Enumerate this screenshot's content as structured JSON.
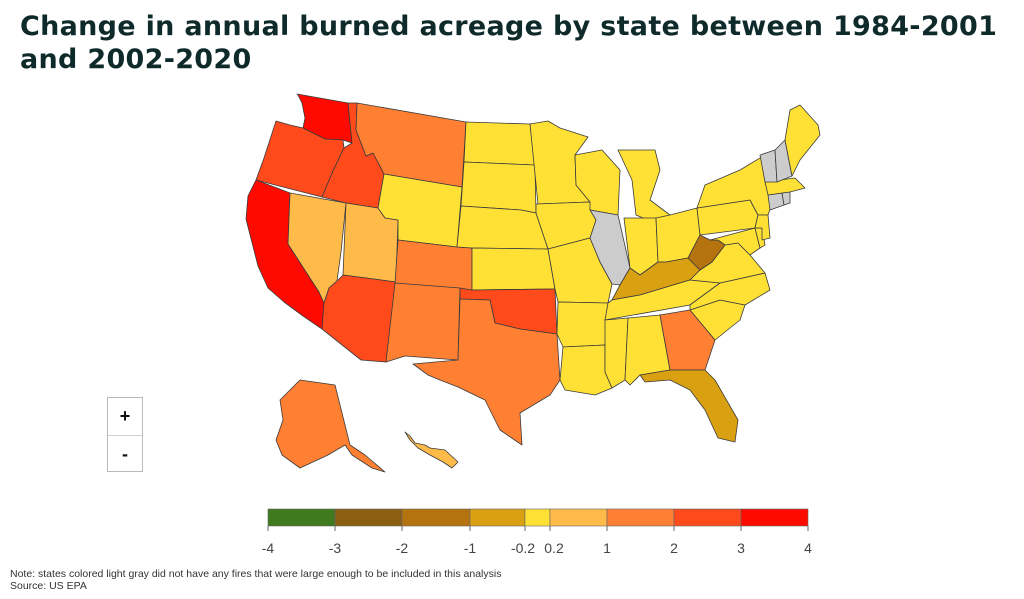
{
  "title": "Change in annual burned acreage by state between 1984-2001 and 2002-2020",
  "zoom": {
    "in_label": "+",
    "out_label": "-"
  },
  "legend": {
    "bins": [
      {
        "from": -4,
        "to": -3,
        "color": "#3f7a1e"
      },
      {
        "from": -3,
        "to": -2,
        "color": "#8a5f12"
      },
      {
        "from": -2,
        "to": -1,
        "color": "#b5730f"
      },
      {
        "from": -1,
        "to": -0.2,
        "color": "#d9a012"
      },
      {
        "from": -0.2,
        "to": 0.2,
        "color": "#ffe135"
      },
      {
        "from": 0.2,
        "to": 1,
        "color": "#ffbb4a"
      },
      {
        "from": 1,
        "to": 2,
        "color": "#ff8033"
      },
      {
        "from": 2,
        "to": 3,
        "color": "#ff4a1c"
      },
      {
        "from": 3,
        "to": 4,
        "color": "#ff0a00"
      }
    ],
    "ticks": [
      "-4",
      "-3",
      "-2",
      "-1",
      "-0.2",
      "0.2",
      "1",
      "2",
      "3",
      "4"
    ]
  },
  "states": {
    "WA": {
      "bin": 8
    },
    "OR": {
      "bin": 7
    },
    "CA": {
      "bin": 8
    },
    "ID": {
      "bin": 7
    },
    "NV": {
      "bin": 5
    },
    "UT": {
      "bin": 5
    },
    "AZ": {
      "bin": 7
    },
    "MT": {
      "bin": 6
    },
    "WY": {
      "bin": 4
    },
    "CO": {
      "bin": 6
    },
    "NM": {
      "bin": 6
    },
    "ND": {
      "bin": 4
    },
    "SD": {
      "bin": 4
    },
    "NE": {
      "bin": 4
    },
    "KS": {
      "bin": 4
    },
    "OK": {
      "bin": 7
    },
    "TX": {
      "bin": 6
    },
    "MN": {
      "bin": 4
    },
    "IA": {
      "bin": 4
    },
    "MO": {
      "bin": 4
    },
    "AR": {
      "bin": 4
    },
    "LA": {
      "bin": 4
    },
    "WI": {
      "bin": 4
    },
    "IL": {
      "bin": null
    },
    "MI": {
      "bin": 4
    },
    "IN": {
      "bin": 4
    },
    "OH": {
      "bin": 4
    },
    "KY": {
      "bin": 3
    },
    "TN": {
      "bin": 4
    },
    "MS": {
      "bin": 4
    },
    "AL": {
      "bin": 4
    },
    "GA": {
      "bin": 6
    },
    "FL": {
      "bin": 3
    },
    "SC": {
      "bin": 4
    },
    "NC": {
      "bin": 4
    },
    "VA": {
      "bin": 4
    },
    "WV": {
      "bin": 2
    },
    "PA": {
      "bin": 4
    },
    "NY": {
      "bin": 4
    },
    "VT": {
      "bin": null
    },
    "NH": {
      "bin": null
    },
    "ME": {
      "bin": 4
    },
    "MA": {
      "bin": 4
    },
    "CT": {
      "bin": null
    },
    "RI": {
      "bin": null
    },
    "NJ": {
      "bin": 4
    },
    "DE": {
      "bin": 4
    },
    "MD": {
      "bin": 4
    },
    "AK": {
      "bin": 6
    },
    "HI": {
      "bin": 5
    }
  },
  "no_data_color": "#cccccc",
  "note": "Note: states colored light gray did not have any fires that were large enough to be included in this analysis",
  "source": "Source: US EPA"
}
